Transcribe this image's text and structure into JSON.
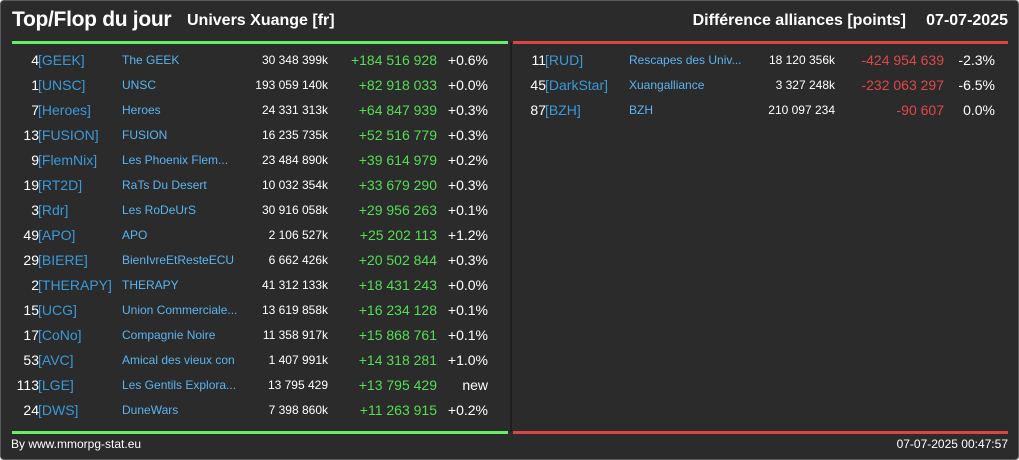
{
  "header": {
    "title": "Top/Flop du jour",
    "universe": "Univers Xuange [fr]",
    "subtitle_right": "Différence alliances [points]",
    "date": "07-07-2025"
  },
  "colors": {
    "background": "#2b2b2b",
    "positive": "#55dd55",
    "negative": "#e04848",
    "tag": "#3a9ad9",
    "name": "#5ab4f0",
    "top_line": "#66ee66",
    "flop_line": "#dd4444"
  },
  "top": [
    {
      "rank": "4",
      "tag": "[GEEK]",
      "name": "The GEEK",
      "points": "30 348 399k",
      "diff": "+184 516 928",
      "pct": "+0.6%"
    },
    {
      "rank": "1",
      "tag": "[UNSC]",
      "name": "UNSC",
      "points": "193 059 140k",
      "diff": "+82 918 033",
      "pct": "+0.0%"
    },
    {
      "rank": "7",
      "tag": "[Heroes]",
      "name": "Heroes",
      "points": "24 331 313k",
      "diff": "+64 847 939",
      "pct": "+0.3%"
    },
    {
      "rank": "13",
      "tag": "[FUSION]",
      "name": "FUSION",
      "points": "16 235 735k",
      "diff": "+52 516 779",
      "pct": "+0.3%"
    },
    {
      "rank": "9",
      "tag": "[FlemNix]",
      "name": "Les Phoenix Flem...",
      "points": "23 484 890k",
      "diff": "+39 614 979",
      "pct": "+0.2%"
    },
    {
      "rank": "19",
      "tag": "[RT2D]",
      "name": "RaTs Du Desert",
      "points": "10 032 354k",
      "diff": "+33 679 290",
      "pct": "+0.3%"
    },
    {
      "rank": "3",
      "tag": "[Rdr]",
      "name": "Les RoDeUrS",
      "points": "30 916 058k",
      "diff": "+29 956 263",
      "pct": "+0.1%"
    },
    {
      "rank": "49",
      "tag": "[APO]",
      "name": "APO",
      "points": "2 106 527k",
      "diff": "+25 202 113",
      "pct": "+1.2%"
    },
    {
      "rank": "29",
      "tag": "[BIERE]",
      "name": "BienIvreEtResteECU",
      "points": "6 662 426k",
      "diff": "+20 502 844",
      "pct": "+0.3%"
    },
    {
      "rank": "2",
      "tag": "[THERAPY]",
      "name": "THERAPY",
      "points": "41 312 133k",
      "diff": "+18 431 243",
      "pct": "+0.0%"
    },
    {
      "rank": "15",
      "tag": "[UCG]",
      "name": "Union Commerciale...",
      "points": "13 619 858k",
      "diff": "+16 234 128",
      "pct": "+0.1%"
    },
    {
      "rank": "17",
      "tag": "[CoNo]",
      "name": "Compagnie Noire",
      "points": "11 358 917k",
      "diff": "+15 868 761",
      "pct": "+0.1%"
    },
    {
      "rank": "53",
      "tag": "[AVC]",
      "name": "Amical des vieux con",
      "points": "1 407 991k",
      "diff": "+14 318 281",
      "pct": "+1.0%"
    },
    {
      "rank": "113",
      "tag": "[LGE]",
      "name": "Les Gentils Explora...",
      "points": "13 795 429",
      "diff": "+13 795 429",
      "pct": "new"
    },
    {
      "rank": "24",
      "tag": "[DWS]",
      "name": "DuneWars",
      "points": "7 398 860k",
      "diff": "+11 263 915",
      "pct": "+0.2%"
    }
  ],
  "flop": [
    {
      "rank": "11",
      "tag": "[RUD]",
      "name": "Rescapes des Univ...",
      "points": "18 120 356k",
      "diff": "-424 954 639",
      "pct": "-2.3%"
    },
    {
      "rank": "45",
      "tag": "[DarkStar]",
      "name": "Xuangalliance",
      "points": "3 327 248k",
      "diff": "-232 063 297",
      "pct": "-6.5%"
    },
    {
      "rank": "87",
      "tag": "[BZH]",
      "name": "BZH",
      "points": "210 097 234",
      "diff": "-90 607",
      "pct": "0.0%"
    }
  ],
  "footer": {
    "source": "By www.mmorpg-stat.eu",
    "timestamp": "07-07-2025 00:47:57"
  }
}
